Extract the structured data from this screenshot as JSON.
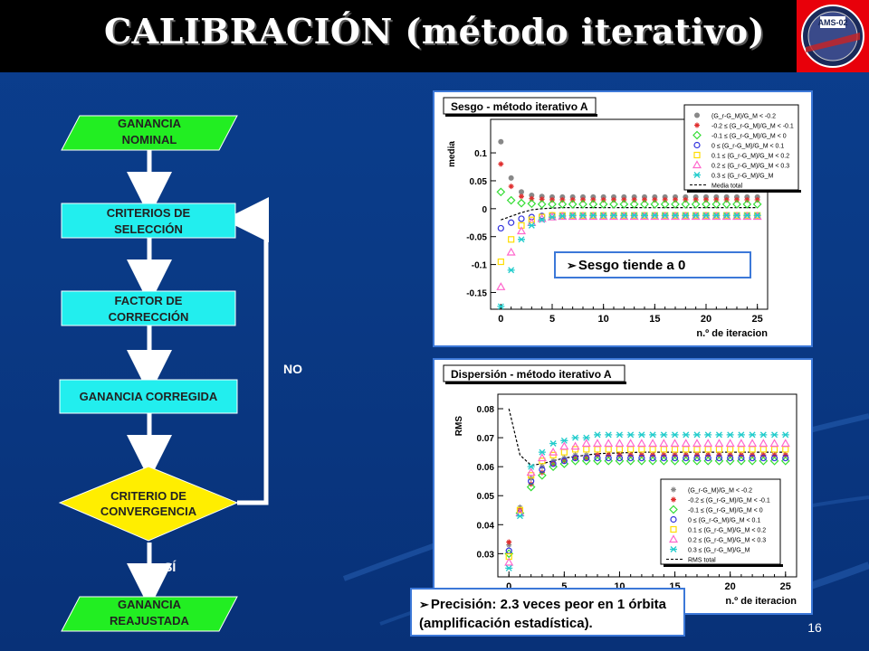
{
  "slide": {
    "title": "CALIBRACIÓN (método iterativo)",
    "page_number": "16",
    "logo_text": "AMS-02",
    "colors": {
      "background": "#0a3a86",
      "title_bar": "#000000",
      "logo": "#e8000a",
      "green_box": "#22ee22",
      "cyan_box": "#22eeee",
      "yellow_diamond": "#ffee00"
    }
  },
  "flowchart": {
    "start": "GANANCIA NOMINAL",
    "step1": "CRITERIOS DE SELECCIÓN",
    "step2": "FACTOR DE CORRECCIÓN",
    "step3": "GANANCIA CORREGIDA",
    "decision": "CRITERIO DE CONVERGENCIA",
    "end": "GANANCIA REAJUSTADA",
    "no_label": "NO",
    "yes_label": "SÍ"
  },
  "callouts": {
    "sesgo": "Sesgo tiende a 0",
    "precision": "Precisión: 2.3 veces peor en 1 órbita (amplificación estadística)."
  },
  "chart_data": [
    {
      "type": "scatter",
      "title": "Sesgo - método iterativo A",
      "xlabel": "n.º de iteracion",
      "ylabel": "media",
      "xlim": [
        -1,
        26
      ],
      "ylim": [
        -0.18,
        0.16
      ],
      "xticks": [
        0,
        5,
        10,
        15,
        20,
        25
      ],
      "yticks": [
        0.1,
        0.05,
        0,
        -0.05,
        -0.1,
        -0.15
      ],
      "legend_position": "top-right",
      "x": [
        0,
        1,
        2,
        3,
        4,
        5,
        6,
        7,
        8,
        9,
        10,
        11,
        12,
        13,
        14,
        15,
        16,
        17,
        18,
        19,
        20,
        21,
        22,
        23,
        24,
        25
      ],
      "series": [
        {
          "name": "(G_r-G_M)/G_M < -0.2",
          "marker": "circle-filled",
          "color": "#888888",
          "values": [
            0.12,
            0.055,
            0.03,
            0.024,
            0.022,
            0.021,
            0.021,
            0.021,
            0.021,
            0.021,
            0.021,
            0.021,
            0.021,
            0.021,
            0.021,
            0.021,
            0.021,
            0.021,
            0.021,
            0.021,
            0.021,
            0.021,
            0.021,
            0.021,
            0.021,
            0.021
          ]
        },
        {
          "name": "-0.2 ≤ (G_r-G_M)/G_M < -0.1",
          "marker": "star",
          "color": "#e03030",
          "values": [
            0.08,
            0.04,
            0.022,
            0.018,
            0.017,
            0.016,
            0.016,
            0.016,
            0.016,
            0.016,
            0.016,
            0.016,
            0.016,
            0.016,
            0.016,
            0.016,
            0.016,
            0.016,
            0.016,
            0.016,
            0.016,
            0.016,
            0.016,
            0.016,
            0.016,
            0.016
          ]
        },
        {
          "name": "-0.1 ≤ (G_r-G_M)/G_M < 0",
          "marker": "diamond",
          "color": "#33dd33",
          "values": [
            0.03,
            0.015,
            0.01,
            0.009,
            0.008,
            0.008,
            0.008,
            0.008,
            0.008,
            0.008,
            0.008,
            0.008,
            0.008,
            0.008,
            0.008,
            0.008,
            0.008,
            0.008,
            0.008,
            0.008,
            0.008,
            0.008,
            0.008,
            0.008,
            0.008,
            0.008
          ]
        },
        {
          "name": "0 ≤ (G_r-G_M)/G_M < 0.1",
          "marker": "circle-open",
          "color": "#3333dd",
          "values": [
            -0.035,
            -0.025,
            -0.018,
            -0.015,
            -0.013,
            -0.012,
            -0.012,
            -0.012,
            -0.012,
            -0.012,
            -0.012,
            -0.012,
            -0.012,
            -0.012,
            -0.012,
            -0.012,
            -0.012,
            -0.012,
            -0.012,
            -0.012,
            -0.012,
            -0.012,
            -0.012,
            -0.012,
            -0.012,
            -0.012
          ]
        },
        {
          "name": "0.1 ≤ (G_r-G_M)/G_M < 0.2",
          "marker": "square",
          "color": "#ffdd00",
          "values": [
            -0.095,
            -0.055,
            -0.03,
            -0.02,
            -0.015,
            -0.012,
            -0.012,
            -0.012,
            -0.012,
            -0.012,
            -0.012,
            -0.012,
            -0.012,
            -0.012,
            -0.012,
            -0.012,
            -0.012,
            -0.012,
            -0.012,
            -0.012,
            -0.012,
            -0.012,
            -0.012,
            -0.012,
            -0.012,
            -0.012
          ]
        },
        {
          "name": "0.2 ≤ (G_r-G_M)/G_M < 0.3",
          "marker": "triangle",
          "color": "#ff66cc",
          "values": [
            -0.14,
            -0.078,
            -0.04,
            -0.025,
            -0.018,
            -0.015,
            -0.014,
            -0.014,
            -0.014,
            -0.014,
            -0.014,
            -0.014,
            -0.014,
            -0.014,
            -0.014,
            -0.014,
            -0.014,
            -0.014,
            -0.014,
            -0.014,
            -0.014,
            -0.014,
            -0.014,
            -0.014,
            -0.014,
            -0.014
          ]
        },
        {
          "name": "0.3 ≤ (G_r-G_M)/G_M",
          "marker": "cross",
          "color": "#22cccc",
          "values": [
            -0.175,
            -0.11,
            -0.055,
            -0.03,
            -0.02,
            -0.015,
            -0.013,
            -0.012,
            -0.012,
            -0.012,
            -0.012,
            -0.012,
            -0.012,
            -0.012,
            -0.012,
            -0.012,
            -0.012,
            -0.012,
            -0.012,
            -0.012,
            -0.012,
            -0.012,
            -0.012,
            -0.012,
            -0.012,
            -0.012
          ]
        }
      ],
      "line": {
        "name": "Media total",
        "x": [
          0,
          2,
          3,
          4,
          6,
          8,
          25
        ],
        "values": [
          -0.02,
          -0.007,
          -0.002,
          0,
          0.002,
          0.002,
          0.002
        ]
      }
    },
    {
      "type": "scatter",
      "title": "Dispersión - método iterativo A",
      "xlabel": "n.º de iteracion",
      "ylabel": "RMS",
      "xlim": [
        -1,
        26
      ],
      "ylim": [
        0.022,
        0.085
      ],
      "xticks": [
        0,
        5,
        10,
        15,
        20,
        25
      ],
      "yticks": [
        0.08,
        0.07,
        0.06,
        0.05,
        0.04,
        0.03
      ],
      "legend_position": "bottom-right",
      "x": [
        0,
        1,
        2,
        3,
        4,
        5,
        6,
        7,
        8,
        9,
        10,
        11,
        12,
        13,
        14,
        15,
        16,
        17,
        18,
        19,
        20,
        21,
        22,
        23,
        24,
        25
      ],
      "series": [
        {
          "name": "(G_r-G_M)/G_M < -0.2",
          "marker": "star",
          "color": "#888888",
          "values": [
            0.033,
            0.046,
            0.056,
            0.06,
            0.062,
            0.063,
            0.064,
            0.064,
            0.064,
            0.064,
            0.064,
            0.064,
            0.064,
            0.064,
            0.064,
            0.064,
            0.064,
            0.064,
            0.064,
            0.064,
            0.064,
            0.064,
            0.064,
            0.064,
            0.064,
            0.064
          ]
        },
        {
          "name": "-0.2 ≤ (G_r-G_M)/G_M < -0.1",
          "marker": "star",
          "color": "#e03030",
          "values": [
            0.034,
            0.045,
            0.054,
            0.058,
            0.061,
            0.062,
            0.063,
            0.063,
            0.064,
            0.064,
            0.064,
            0.064,
            0.064,
            0.064,
            0.064,
            0.064,
            0.064,
            0.064,
            0.064,
            0.064,
            0.064,
            0.064,
            0.064,
            0.064,
            0.064,
            0.064
          ]
        },
        {
          "name": "-0.1 ≤ (G_r-G_M)/G_M < 0",
          "marker": "diamond",
          "color": "#33dd33",
          "values": [
            0.03,
            0.044,
            0.053,
            0.057,
            0.06,
            0.061,
            0.062,
            0.062,
            0.062,
            0.062,
            0.062,
            0.062,
            0.062,
            0.062,
            0.062,
            0.062,
            0.062,
            0.062,
            0.062,
            0.062,
            0.062,
            0.062,
            0.062,
            0.062,
            0.062,
            0.062
          ]
        },
        {
          "name": "0 ≤ (G_r-G_M)/G_M < 0.1",
          "marker": "circle-open",
          "color": "#3333dd",
          "values": [
            0.031,
            0.044,
            0.055,
            0.059,
            0.061,
            0.062,
            0.063,
            0.063,
            0.063,
            0.063,
            0.063,
            0.063,
            0.063,
            0.063,
            0.063,
            0.063,
            0.063,
            0.063,
            0.063,
            0.063,
            0.063,
            0.063,
            0.063,
            0.063,
            0.063,
            0.063
          ]
        },
        {
          "name": "0.1 ≤ (G_r-G_M)/G_M < 0.2",
          "marker": "square",
          "color": "#ffdd00",
          "values": [
            0.029,
            0.045,
            0.057,
            0.062,
            0.064,
            0.065,
            0.066,
            0.066,
            0.066,
            0.066,
            0.066,
            0.066,
            0.066,
            0.066,
            0.066,
            0.066,
            0.066,
            0.066,
            0.066,
            0.066,
            0.066,
            0.066,
            0.066,
            0.066,
            0.066,
            0.066
          ]
        },
        {
          "name": "0.2 ≤ (G_r-G_M)/G_M < 0.3",
          "marker": "triangle",
          "color": "#ff66cc",
          "values": [
            0.027,
            0.044,
            0.058,
            0.063,
            0.065,
            0.067,
            0.067,
            0.068,
            0.068,
            0.068,
            0.068,
            0.068,
            0.068,
            0.068,
            0.068,
            0.068,
            0.068,
            0.068,
            0.068,
            0.068,
            0.068,
            0.068,
            0.068,
            0.068,
            0.068,
            0.068
          ]
        },
        {
          "name": "0.3 ≤ (G_r-G_M)/G_M",
          "marker": "cross",
          "color": "#22cccc",
          "values": [
            0.025,
            0.043,
            0.06,
            0.065,
            0.068,
            0.069,
            0.07,
            0.07,
            0.071,
            0.071,
            0.071,
            0.071,
            0.071,
            0.071,
            0.071,
            0.071,
            0.071,
            0.071,
            0.071,
            0.071,
            0.071,
            0.071,
            0.071,
            0.071,
            0.071,
            0.071
          ]
        }
      ],
      "line": {
        "name": "RMS total",
        "x": [
          0,
          1,
          2,
          3,
          5,
          8,
          12,
          25
        ],
        "values": [
          0.08,
          0.064,
          0.0605,
          0.061,
          0.063,
          0.0645,
          0.065,
          0.065
        ]
      }
    }
  ]
}
